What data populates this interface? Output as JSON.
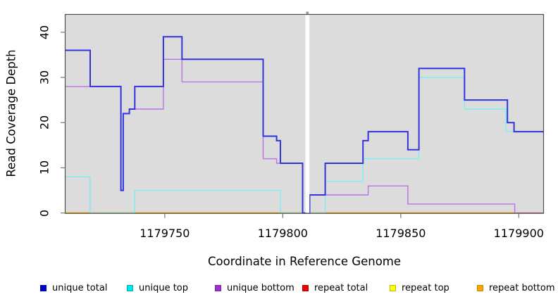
{
  "chart_data": {
    "type": "line",
    "subtype": "step",
    "title": "",
    "xlabel": "Coordinate in Reference Genome",
    "ylabel": "Read Coverage Depth",
    "xlim": [
      1179707.8,
      1179910.5
    ],
    "ylim": [
      0,
      44
    ],
    "x_ticks": [
      1179750,
      1179800,
      1179850,
      1179900
    ],
    "y_ticks": [
      0,
      10,
      20,
      30,
      40
    ],
    "grid": false,
    "plot_bg_color": "#dcdcdc",
    "border_color": "#4d4d4d",
    "tick_color": "#7f7f7f",
    "gap_band": {
      "from": 1179809.6,
      "to": 1179811.3,
      "color": "#ffffff"
    },
    "legend_position": "bottom",
    "series": [
      {
        "name": "repeat top",
        "color": "#ffff00",
        "width": 1.2,
        "end": 1179898.1,
        "points": [
          [
            1179707.8,
            0
          ]
        ]
      },
      {
        "name": "repeat total",
        "color": "#e0618e",
        "width": 1.6,
        "end": 1179910.5,
        "points": [
          [
            1179707.8,
            0
          ]
        ]
      },
      {
        "name": "repeat bottom",
        "color": "#ffa500",
        "width": 2,
        "end": 1179898.1,
        "points": [
          [
            1179707.8,
            0
          ]
        ]
      },
      {
        "name": "unique top",
        "color": "#7deef2",
        "width": 1.4,
        "end": 1179910.5,
        "points": [
          [
            1179707.8,
            8
          ],
          [
            1179718.4,
            0
          ],
          [
            1179737.3,
            5
          ],
          [
            1179799,
            0
          ],
          [
            1179818,
            7
          ],
          [
            1179834,
            12
          ],
          [
            1179857.7,
            30
          ],
          [
            1179877,
            23
          ],
          [
            1179894.6,
            18
          ]
        ]
      },
      {
        "name": "unique bottom",
        "color": "#b973e3",
        "width": 1.4,
        "end": 1179898.3,
        "points": [
          [
            1179707.8,
            28
          ],
          [
            1179731.4,
            5
          ],
          [
            1179732.4,
            22
          ],
          [
            1179735,
            23
          ],
          [
            1179749.4,
            34
          ],
          [
            1179757.3,
            29
          ],
          [
            1179791.7,
            12
          ],
          [
            1179797.4,
            11
          ],
          [
            1179808.4,
            0
          ],
          [
            1179811.4,
            4
          ],
          [
            1179836.2,
            6
          ],
          [
            1179853,
            2
          ],
          [
            1179898.3,
            0
          ]
        ]
      },
      {
        "name": "unique total",
        "color": "#3333dd",
        "width": 2,
        "end": 1179910.5,
        "points": [
          [
            1179707.8,
            36
          ],
          [
            1179718.4,
            28
          ],
          [
            1179731.4,
            5
          ],
          [
            1179732.4,
            22
          ],
          [
            1179735,
            23
          ],
          [
            1179737.3,
            28
          ],
          [
            1179749.4,
            39
          ],
          [
            1179757.3,
            34
          ],
          [
            1179791.7,
            17
          ],
          [
            1179797.4,
            16
          ],
          [
            1179799,
            11
          ],
          [
            1179808.4,
            0
          ],
          [
            1179811.4,
            4
          ],
          [
            1179818,
            11
          ],
          [
            1179834,
            16
          ],
          [
            1179836.2,
            18
          ],
          [
            1179853,
            14
          ],
          [
            1179857.7,
            32
          ],
          [
            1179877,
            25
          ],
          [
            1179895.2,
            20
          ],
          [
            1179898,
            18
          ]
        ]
      }
    ],
    "legend": [
      {
        "label": "unique total",
        "swatch": "#0000cd",
        "border": "#0000a8"
      },
      {
        "label": "unique top",
        "swatch": "#00e5ee",
        "border": "#00aebc"
      },
      {
        "label": "unique bottom",
        "swatch": "#9a32cd",
        "border": "#7a23a6"
      },
      {
        "label": "repeat total",
        "swatch": "#ee0000",
        "border": "#b40000"
      },
      {
        "label": "repeat top",
        "swatch": "#ffff00",
        "border": "#bcbc00"
      },
      {
        "label": "repeat bottom",
        "swatch": "#ffa500",
        "border": "#c97f00"
      }
    ]
  }
}
